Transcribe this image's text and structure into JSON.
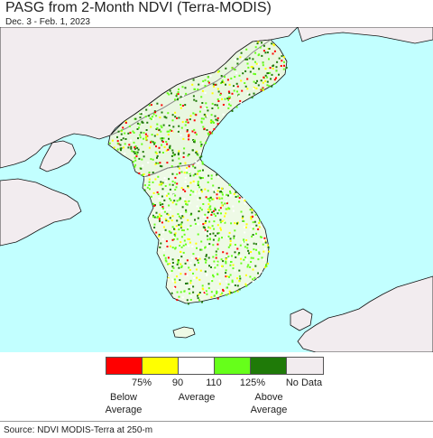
{
  "header": {
    "title": "PASG from 2-Month NDVI (Terra-MODIS)",
    "subtitle": "Dec. 3 - Feb. 1, 2023"
  },
  "legend": {
    "swatches": [
      {
        "name": "below-75",
        "color": "#ff0000"
      },
      {
        "name": "75-90",
        "color": "#ffff00"
      },
      {
        "name": "90-110",
        "color": "#ffffff"
      },
      {
        "name": "110-125",
        "color": "#66ff1a"
      },
      {
        "name": "above-125",
        "color": "#1f7a08"
      },
      {
        "name": "no-data",
        "color": "#f2ecef"
      }
    ],
    "ticks": [
      "75%",
      "90",
      "110",
      "125%",
      "No Data"
    ],
    "descriptors": {
      "below": "Below\nAverage",
      "average": "Average",
      "above": "Above\nAverage"
    }
  },
  "map": {
    "colors": {
      "sea": "#c2ffff",
      "land_nodata": "#f2ecef",
      "border": "#8a8a8a",
      "coast": "#111111"
    }
  },
  "footer": {
    "source": "Source: NDVI MODIS-Terra at 250-m"
  }
}
